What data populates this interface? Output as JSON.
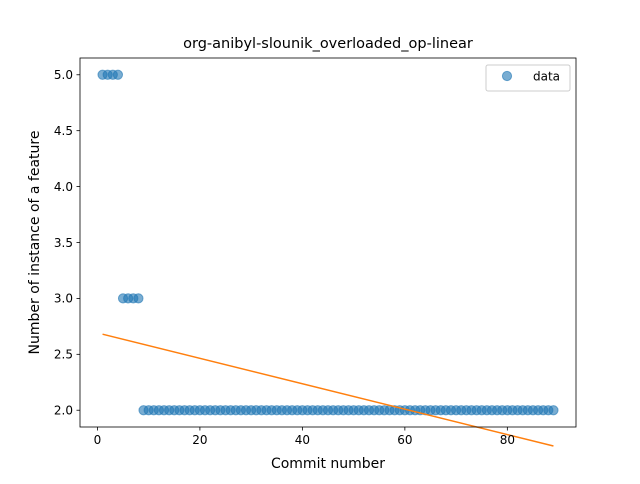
{
  "chart_data": {
    "type": "scatter",
    "title": "org-anibyl-slounik_overloaded_op-linear",
    "xlabel": "Commit number",
    "ylabel": "Number of instance of a feature",
    "xlim": [
      -3.4,
      93.4
    ],
    "ylim": [
      1.85,
      5.15
    ],
    "xticks": [
      0,
      20,
      40,
      60,
      80
    ],
    "xtick_labels": [
      "0",
      "20",
      "40",
      "60",
      "80"
    ],
    "yticks": [
      2.0,
      2.5,
      3.0,
      3.5,
      4.0,
      4.5,
      5.0
    ],
    "ytick_labels": [
      "2.0",
      "2.5",
      "3.0",
      "3.5",
      "4.0",
      "4.5",
      "5.0"
    ],
    "grid": false,
    "legend": {
      "position": "top-right",
      "entries": [
        "data"
      ]
    },
    "series": [
      {
        "name": "data",
        "kind": "scatter",
        "color": "#1f77b4",
        "x": [
          1,
          2,
          3,
          4,
          5,
          6,
          7,
          8,
          9,
          10,
          11,
          12,
          13,
          14,
          15,
          16,
          17,
          18,
          19,
          20,
          21,
          22,
          23,
          24,
          25,
          26,
          27,
          28,
          29,
          30,
          31,
          32,
          33,
          34,
          35,
          36,
          37,
          38,
          39,
          40,
          41,
          42,
          43,
          44,
          45,
          46,
          47,
          48,
          49,
          50,
          51,
          52,
          53,
          54,
          55,
          56,
          57,
          58,
          59,
          60,
          61,
          62,
          63,
          64,
          65,
          66,
          67,
          68,
          69,
          70,
          71,
          72,
          73,
          74,
          75,
          76,
          77,
          78,
          79,
          80,
          81,
          82,
          83,
          84,
          85,
          86,
          87,
          88,
          89
        ],
        "y": [
          5,
          5,
          5,
          5,
          3,
          3,
          3,
          3,
          2,
          2,
          2,
          2,
          2,
          2,
          2,
          2,
          2,
          2,
          2,
          2,
          2,
          2,
          2,
          2,
          2,
          2,
          2,
          2,
          2,
          2,
          2,
          2,
          2,
          2,
          2,
          2,
          2,
          2,
          2,
          2,
          2,
          2,
          2,
          2,
          2,
          2,
          2,
          2,
          2,
          2,
          2,
          2,
          2,
          2,
          2,
          2,
          2,
          2,
          2,
          2,
          2,
          2,
          2,
          2,
          2,
          2,
          2,
          2,
          2,
          2,
          2,
          2,
          2,
          2,
          2,
          2,
          2,
          2,
          2,
          2,
          2,
          2,
          2,
          2,
          2,
          2,
          2,
          2,
          2
        ]
      },
      {
        "kind": "line",
        "color": "#ff7f0e",
        "x": [
          1,
          89
        ],
        "y": [
          2.68,
          1.68
        ]
      }
    ]
  }
}
